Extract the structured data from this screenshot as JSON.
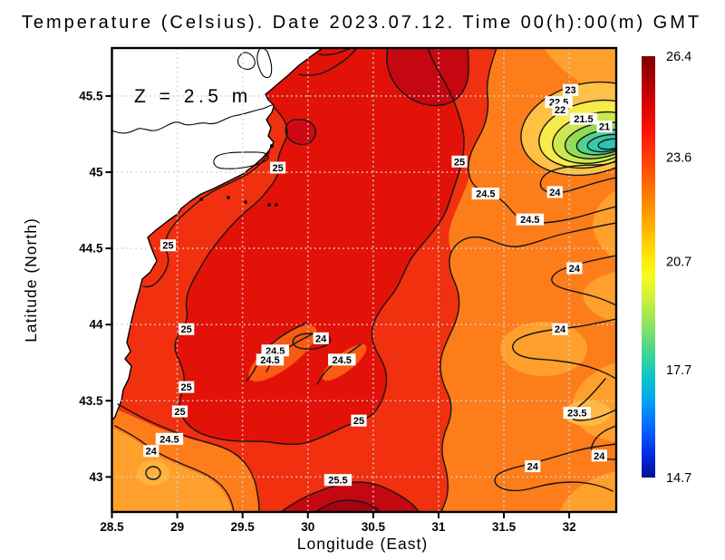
{
  "title": "Temperature (Celsius). Date 2023.07.12. Time 00(h):00(m) GMT",
  "chart_data": {
    "type": "heatmap",
    "subtype": "filled_contour_map",
    "title": "Temperature (Celsius). Date 2023.07.12. Time 00(h):00(m) GMT",
    "annotation": "Z = 2.5 m",
    "xlabel": "Longitude (East)",
    "ylabel": "Latitude (North)",
    "x_range": [
      28.5,
      32.36
    ],
    "y_range": [
      42.77,
      45.815
    ],
    "x_ticks": [
      {
        "v": 28.5,
        "label": "28.5"
      },
      {
        "v": 29,
        "label": "29"
      },
      {
        "v": 29.5,
        "label": "29.5"
      },
      {
        "v": 30,
        "label": "30"
      },
      {
        "v": 30.5,
        "label": "30.5"
      },
      {
        "v": 31,
        "label": "31"
      },
      {
        "v": 31.5,
        "label": "31.5"
      },
      {
        "v": 32,
        "label": "32"
      }
    ],
    "y_ticks": [
      {
        "v": 45.5,
        "label": "45.5"
      },
      {
        "v": 45,
        "label": "45"
      },
      {
        "v": 44.5,
        "label": "44.5"
      },
      {
        "v": 44,
        "label": "44"
      },
      {
        "v": 43.5,
        "label": "43.5"
      },
      {
        "v": 43,
        "label": "43"
      }
    ],
    "grid": "dotted",
    "contour_interval": 0.5,
    "contour_levels_labeled": [
      21,
      21.5,
      22,
      22.5,
      23,
      23.5,
      24,
      24.5,
      25,
      25.5
    ],
    "contour_labels": [
      {
        "value": "25",
        "lon": 29.77,
        "lat": 45.03
      },
      {
        "value": "25",
        "lon": 28.93,
        "lat": 44.52
      },
      {
        "value": "25",
        "lon": 31.16,
        "lat": 45.07
      },
      {
        "value": "25",
        "lon": 29.07,
        "lat": 43.97
      },
      {
        "value": "24",
        "lon": 30.1,
        "lat": 43.91
      },
      {
        "value": "24.5",
        "lon": 29.75,
        "lat": 43.83
      },
      {
        "value": "24.5",
        "lon": 29.71,
        "lat": 43.77
      },
      {
        "value": "24.5",
        "lon": 30.26,
        "lat": 43.77
      },
      {
        "value": "25",
        "lon": 29.07,
        "lat": 43.59
      },
      {
        "value": "25",
        "lon": 29.02,
        "lat": 43.43
      },
      {
        "value": "25",
        "lon": 30.39,
        "lat": 43.37
      },
      {
        "value": "24.5",
        "lon": 28.94,
        "lat": 43.25
      },
      {
        "value": "24",
        "lon": 28.8,
        "lat": 43.17
      },
      {
        "value": "25.5",
        "lon": 30.23,
        "lat": 42.98
      },
      {
        "value": "24.5",
        "lon": 31.36,
        "lat": 44.86
      },
      {
        "value": "24",
        "lon": 31.89,
        "lat": 44.87
      },
      {
        "value": "24.5",
        "lon": 31.7,
        "lat": 44.69
      },
      {
        "value": "24",
        "lon": 32.04,
        "lat": 44.37
      },
      {
        "value": "24",
        "lon": 31.93,
        "lat": 43.97
      },
      {
        "value": "23.5",
        "lon": 32.06,
        "lat": 43.42
      },
      {
        "value": "24",
        "lon": 31.72,
        "lat": 43.07
      },
      {
        "value": "24",
        "lon": 32.23,
        "lat": 43.14
      },
      {
        "value": "23",
        "lon": 32.01,
        "lat": 45.54
      },
      {
        "value": "22.5",
        "lon": 31.92,
        "lat": 45.46
      },
      {
        "value": "22",
        "lon": 31.93,
        "lat": 45.41
      },
      {
        "value": "21.5",
        "lon": 32.11,
        "lat": 45.35
      },
      {
        "value": "21",
        "lon": 32.27,
        "lat": 45.3
      }
    ],
    "features": {
      "cold_eddy": {
        "lon": 32.2,
        "lat": 45.3,
        "core_temp_c": 21
      },
      "warm_patch_south": {
        "lon": 30.2,
        "lat": 42.85,
        "temp_c": 25.5
      },
      "land": "coastline along western edge, white fill"
    },
    "colorbar": {
      "min": 14.7,
      "max": 26.4,
      "tick_labels": [
        "26.4",
        "23.6",
        "20.7",
        "17.7",
        "14.7"
      ],
      "tick_values": [
        26.4,
        23.6,
        20.7,
        17.7,
        14.7
      ],
      "palette_top_to_bottom": [
        {
          "pos": 0.0,
          "color": "#7c0100"
        },
        {
          "pos": 0.04,
          "color": "#9e0000"
        },
        {
          "pos": 0.1,
          "color": "#cf0000"
        },
        {
          "pos": 0.18,
          "color": "#fb1500"
        },
        {
          "pos": 0.26,
          "color": "#ff4a00"
        },
        {
          "pos": 0.33,
          "color": "#ff7e00"
        },
        {
          "pos": 0.4,
          "color": "#ffae00"
        },
        {
          "pos": 0.47,
          "color": "#ffe205"
        },
        {
          "pos": 0.52,
          "color": "#f8fb1c"
        },
        {
          "pos": 0.58,
          "color": "#c8ef3e"
        },
        {
          "pos": 0.64,
          "color": "#8ce25e"
        },
        {
          "pos": 0.7,
          "color": "#46d68e"
        },
        {
          "pos": 0.76,
          "color": "#0cc6c6"
        },
        {
          "pos": 0.82,
          "color": "#00a2f0"
        },
        {
          "pos": 0.88,
          "color": "#0068ff"
        },
        {
          "pos": 0.94,
          "color": "#0030e8"
        },
        {
          "pos": 1.0,
          "color": "#001292"
        }
      ]
    }
  }
}
